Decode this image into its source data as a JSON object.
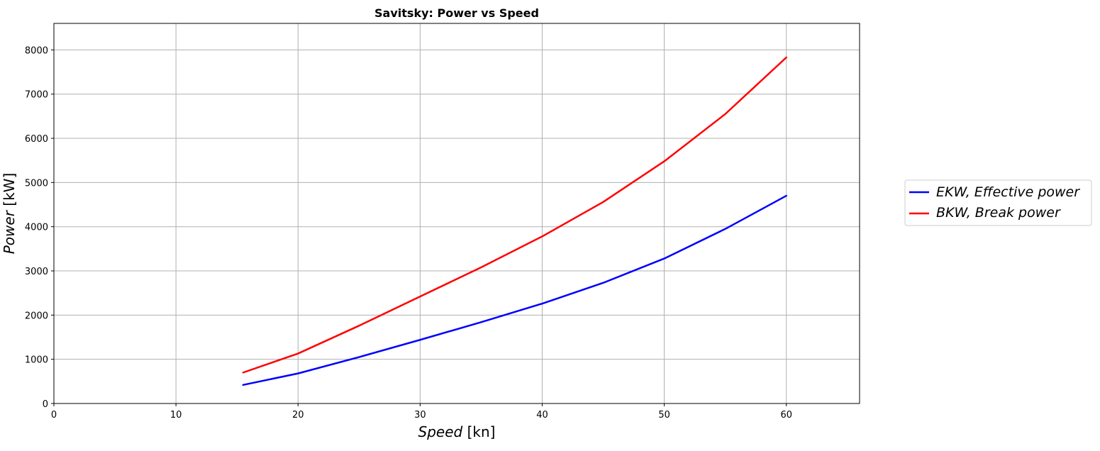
{
  "chart_data": {
    "type": "line",
    "title": "Savitsky: Power vs Speed",
    "xlabel": "Speed [kn]",
    "xlabel_main": "Speed",
    "xlabel_unit": "[kn]",
    "ylabel": "Power [kW]",
    "ylabel_main": "Power",
    "ylabel_unit": "[kW]",
    "xlim": [
      0,
      66
    ],
    "ylim": [
      0,
      8600
    ],
    "xticks": [
      0,
      10,
      20,
      30,
      40,
      50,
      60
    ],
    "yticks": [
      0,
      1000,
      2000,
      3000,
      4000,
      5000,
      6000,
      7000,
      8000
    ],
    "grid": true,
    "legend_position": "outside-right",
    "x": [
      15.5,
      20,
      25,
      30,
      35,
      40,
      45,
      50,
      55,
      60
    ],
    "series": [
      {
        "name": "EKW, Effective power",
        "color": "#0000ff",
        "values": [
          420,
          680,
          1050,
          1440,
          1840,
          2260,
          2730,
          3280,
          3950,
          4700
        ]
      },
      {
        "name": "BKW, Break power",
        "color": "#ff0000",
        "values": [
          700,
          1130,
          1760,
          2420,
          3080,
          3780,
          4560,
          5480,
          6550,
          7830
        ]
      }
    ]
  }
}
